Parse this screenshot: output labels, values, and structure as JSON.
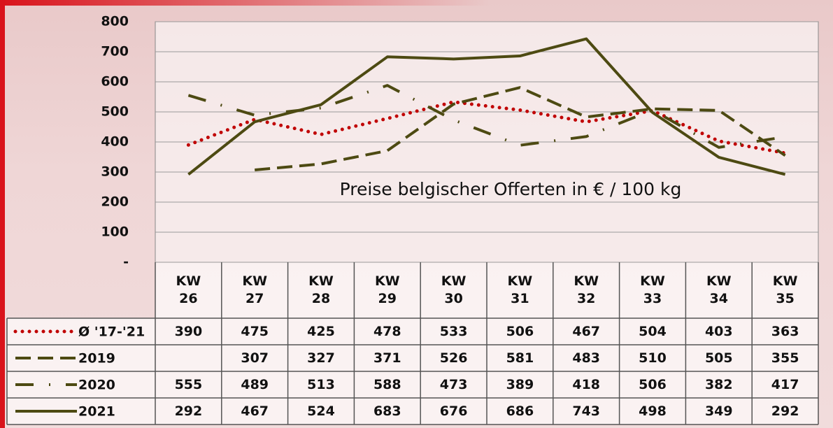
{
  "chart_data": {
    "type": "line",
    "annotation": "Preise belgischer Offerten in € / 100 kg",
    "categories": [
      "KW 26",
      "KW 27",
      "KW 28",
      "KW 29",
      "KW 30",
      "KW 31",
      "KW 32",
      "KW 33",
      "KW 34",
      "KW 35"
    ],
    "series": [
      {
        "name": "Ø '17-'21",
        "color": "#c00000",
        "style": "dotted",
        "values": [
          390,
          475,
          425,
          478,
          533,
          506,
          467,
          504,
          403,
          363
        ]
      },
      {
        "name": "2019",
        "color": "#4d4a12",
        "style": "dashed",
        "values": [
          null,
          307,
          327,
          371,
          526,
          581,
          483,
          510,
          505,
          355
        ]
      },
      {
        "name": "2020",
        "color": "#4d4a12",
        "style": "dashdot",
        "values": [
          555,
          489,
          513,
          588,
          473,
          389,
          418,
          506,
          382,
          417
        ]
      },
      {
        "name": "2021",
        "color": "#4d4a12",
        "style": "solid",
        "values": [
          292,
          467,
          524,
          683,
          676,
          686,
          743,
          498,
          349,
          292
        ]
      }
    ],
    "ylim": [
      0,
      800
    ],
    "yticks": [
      {
        "value": 0,
        "label": "-"
      },
      100,
      200,
      300,
      400,
      500,
      600,
      700,
      800
    ],
    "grid": true
  }
}
